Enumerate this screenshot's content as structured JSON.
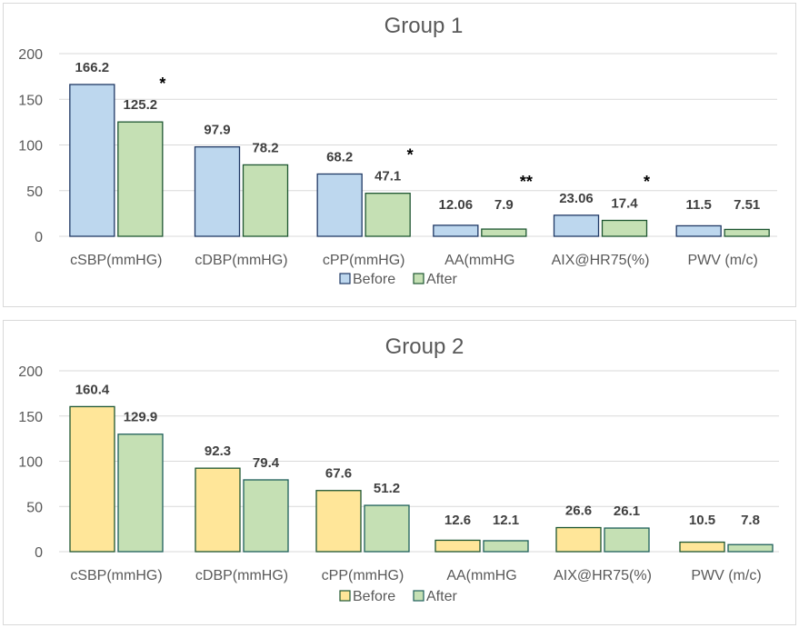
{
  "chart_data": [
    {
      "type": "bar",
      "title": "Group 1",
      "categories": [
        "cSBP(mmHG)",
        "cDBP(mmHG)",
        "cPP(mmHG)",
        "AA(mmHG",
        "AIX@HR75(%)",
        "PWV (m/c)"
      ],
      "series": [
        {
          "name": "Before",
          "values": [
            166.2,
            97.9,
            68.2,
            12.06,
            23.06,
            11.5
          ],
          "labels": [
            "166.2",
            "97.9",
            "68.2",
            "12.06",
            "23.06",
            "11.5"
          ],
          "fill": "#bdd7ee",
          "stroke": "#1f3864"
        },
        {
          "name": "After",
          "values": [
            125.2,
            78.2,
            47.1,
            7.9,
            17.4,
            7.51
          ],
          "labels": [
            "125.2",
            "78.2",
            "47.1",
            "7.9",
            "17.4",
            "7.51"
          ],
          "fill": "#c5e0b4",
          "stroke": "#1e5631"
        }
      ],
      "significance": [
        "*",
        "",
        "*",
        "**",
        "*",
        ""
      ],
      "yticks": [
        "0",
        "50",
        "100",
        "150",
        "200"
      ],
      "ylim": [
        0,
        200
      ],
      "xlabel": "",
      "ylabel": "",
      "grid": true,
      "legend": "bottom"
    },
    {
      "type": "bar",
      "title": "Group 2",
      "categories": [
        "cSBP(mmHG)",
        "cDBP(mmHG)",
        "cPP(mmHG)",
        "AA(mmHG",
        "AIX@HR75(%)",
        "PWV (m/c)"
      ],
      "series": [
        {
          "name": "Before",
          "values": [
            160.4,
            92.3,
            67.6,
            12.6,
            26.6,
            10.5
          ],
          "labels": [
            "160.4",
            "92.3",
            "67.6",
            "12.6",
            "26.6",
            "10.5"
          ],
          "fill": "#ffe699",
          "stroke": "#1e5631"
        },
        {
          "name": "After",
          "values": [
            129.9,
            79.4,
            51.2,
            12.1,
            26.1,
            7.8
          ],
          "labels": [
            "129.9",
            "79.4",
            "51.2",
            "12.1",
            "26.1",
            "7.8"
          ],
          "fill": "#c5e0b4",
          "stroke": "#1e5f5a"
        }
      ],
      "significance": [
        "",
        "",
        "",
        "",
        "",
        ""
      ],
      "yticks": [
        "0",
        "50",
        "100",
        "150",
        "200"
      ],
      "ylim": [
        0,
        200
      ],
      "xlabel": "",
      "ylabel": "",
      "grid": true,
      "legend": "bottom"
    }
  ]
}
